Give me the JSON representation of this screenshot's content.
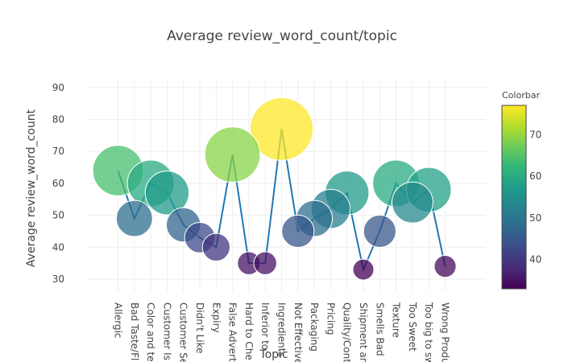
{
  "chart_data": {
    "type": "scatter",
    "title": "Average review_word_count/topic",
    "xlabel": "Topic",
    "ylabel": "Average review_word_count",
    "ylim": [
      25,
      95
    ],
    "yticks": [
      30,
      40,
      50,
      60,
      70,
      80,
      90
    ],
    "categories": [
      "Allergic",
      "Bad Taste/Fl",
      "Color and te",
      "Customer Is",
      "Customer Se",
      "Didn't Like",
      "Expiry",
      "False Advert",
      "Hard to Che",
      "Inferior to",
      "Ingredients",
      "Not Effective",
      "Packaging",
      "Pricing",
      "Quality/Cont",
      "Shipment an",
      "Smells Bad",
      "Texture",
      "Too Sweet",
      "Too big to sw",
      "Wrong Produ"
    ],
    "values": [
      64,
      49,
      60,
      57,
      47,
      43,
      40,
      69,
      35,
      35,
      77,
      45,
      49,
      52,
      57,
      33,
      45,
      60,
      54,
      58,
      34
    ],
    "line_color": "#1f77b4",
    "marker_opacity": 0.75,
    "colorscale": "viridis",
    "colorbar": {
      "title": "Colorbar",
      "range": [
        33,
        77
      ],
      "ticks": [
        40,
        50,
        60,
        70
      ]
    },
    "grid": true,
    "legend": "none"
  }
}
